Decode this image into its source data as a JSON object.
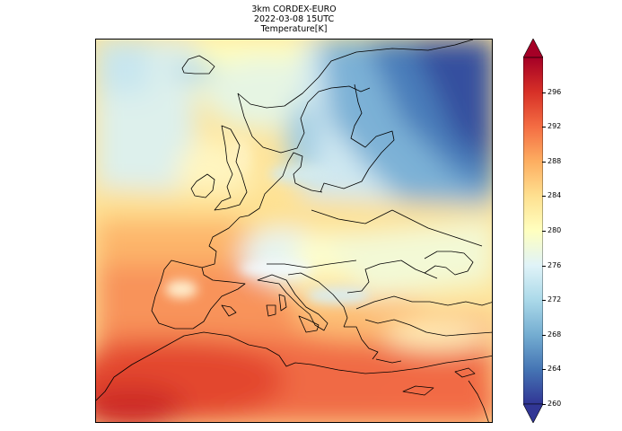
{
  "figure": {
    "title_lines": [
      "3km CORDEX-EURO",
      "2022-03-08 15UTC",
      "Temperature[K]"
    ]
  },
  "colorbar": {
    "min": 260,
    "max": 300,
    "extend": "both",
    "colormap": "RdYlBu_r",
    "ticks": [
      "260",
      "264",
      "268",
      "272",
      "276",
      "280",
      "284",
      "288",
      "292",
      "296"
    ],
    "colors": [
      "#313695",
      "#4575b4",
      "#74add1",
      "#abd9e9",
      "#e0f3f8",
      "#ffffbf",
      "#fee090",
      "#fdae61",
      "#f46d43",
      "#d73027",
      "#a50026"
    ]
  },
  "map": {
    "region": "Europe",
    "projection": "rotated lat-lon",
    "coastlines": true
  }
}
